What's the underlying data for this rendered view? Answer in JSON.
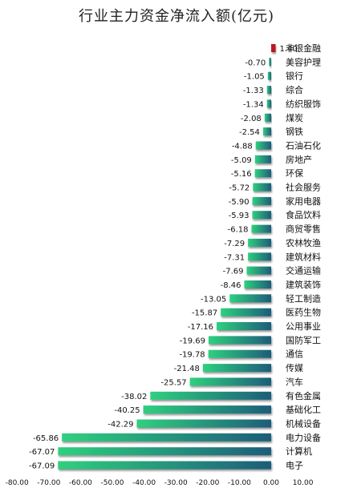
{
  "chart_data": {
    "type": "bar",
    "orientation": "horizontal",
    "title": "行业主力资金净流入额(亿元)",
    "xlabel": "",
    "ylabel": "",
    "xlim": [
      -80,
      10
    ],
    "xticks": [
      -80,
      -70,
      -60,
      -50,
      -40,
      -30,
      -20,
      -10,
      0,
      10
    ],
    "xtick_labels": [
      "-80.00",
      "-70.00",
      "-60.00",
      "-50.00",
      "-40.00",
      "-30.00",
      "-20.00",
      "-10.00",
      "0.00",
      "10.00"
    ],
    "grid": false,
    "legend": "none",
    "colors": {
      "positive": "#c0161f",
      "negative_start": "#2fd07e",
      "negative_end": "#1d5d7a"
    },
    "categories": [
      "非银金融",
      "美容护理",
      "银行",
      "综合",
      "纺织服饰",
      "煤炭",
      "钢铁",
      "石油石化",
      "房地产",
      "环保",
      "社会服务",
      "家用电器",
      "食品饮料",
      "商贸零售",
      "农林牧渔",
      "建筑材料",
      "交通运输",
      "建筑装饰",
      "轻工制造",
      "医药生物",
      "公用事业",
      "国防军工",
      "通信",
      "传媒",
      "汽车",
      "有色金属",
      "基础化工",
      "机械设备",
      "电力设备",
      "计算机",
      "电子"
    ],
    "values": [
      1.4,
      -0.7,
      -1.05,
      -1.33,
      -1.34,
      -2.08,
      -2.54,
      -4.88,
      -5.09,
      -5.16,
      -5.72,
      -5.9,
      -5.93,
      -6.18,
      -7.29,
      -7.31,
      -7.69,
      -8.46,
      -13.05,
      -15.87,
      -17.16,
      -19.69,
      -19.78,
      -21.48,
      -25.57,
      -38.02,
      -40.25,
      -42.29,
      -65.86,
      -67.07,
      -67.09
    ],
    "value_labels": [
      "1.40",
      "-0.70",
      "-1.05",
      "-1.33",
      "-1.34",
      "-2.08",
      "-2.54",
      "-4.88",
      "-5.09",
      "-5.16",
      "-5.72",
      "-5.90",
      "-5.93",
      "-6.18",
      "-7.29",
      "-7.31",
      "-7.69",
      "-8.46",
      "-13.05",
      "-15.87",
      "-17.16",
      "-19.69",
      "-19.78",
      "-21.48",
      "-25.57",
      "-38.02",
      "-40.25",
      "-42.29",
      "-65.86",
      "-67.07",
      "-67.09"
    ]
  }
}
